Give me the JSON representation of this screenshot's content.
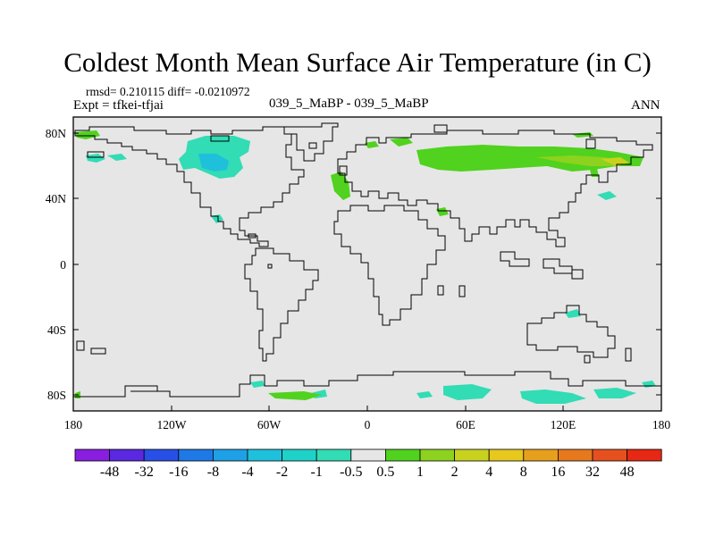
{
  "title": "Coldest Month Mean Surface Air Temperature (in C)",
  "stats_line": "rmsd= 0.210115 diff= -0.0210972",
  "expt_line": "Expt = tfkei-tfjai",
  "case_label": "039_5_MaBP - 039_5_MaBP",
  "season_label": "ANN",
  "axes": {
    "x_ticks": [
      "180",
      "120W",
      "60W",
      "0",
      "60E",
      "120E",
      "180"
    ],
    "y_ticks": [
      "80N",
      "40N",
      "0",
      "40S",
      "80S"
    ],
    "x_range": [
      -180,
      180
    ],
    "y_range": [
      -90,
      90
    ]
  },
  "colorbar": {
    "labels": [
      "-48",
      "-32",
      "-16",
      "-8",
      "-4",
      "-2",
      "-1",
      "-0.5",
      "0.5",
      "1",
      "2",
      "4",
      "8",
      "16",
      "32",
      "48"
    ],
    "colors": [
      "#8a1ee0",
      "#5a28e0",
      "#2850e6",
      "#1e78e6",
      "#1ea0e6",
      "#1ec0dc",
      "#1ed2c8",
      "#32dcb4",
      "#e6e6e6",
      "#50d21e",
      "#8cd21e",
      "#c8d21e",
      "#e6c81e",
      "#e6a01e",
      "#e6781e",
      "#e6501e",
      "#e62814"
    ]
  },
  "map_colors": {
    "background": "#e6e6e6",
    "coastline": "#000000",
    "cool_small": "#32dcb4",
    "cool_mid": "#1ec0dc",
    "warm_small": "#50d21e",
    "warm_mid": "#8cd21e",
    "warm_high": "#c8d21e"
  }
}
